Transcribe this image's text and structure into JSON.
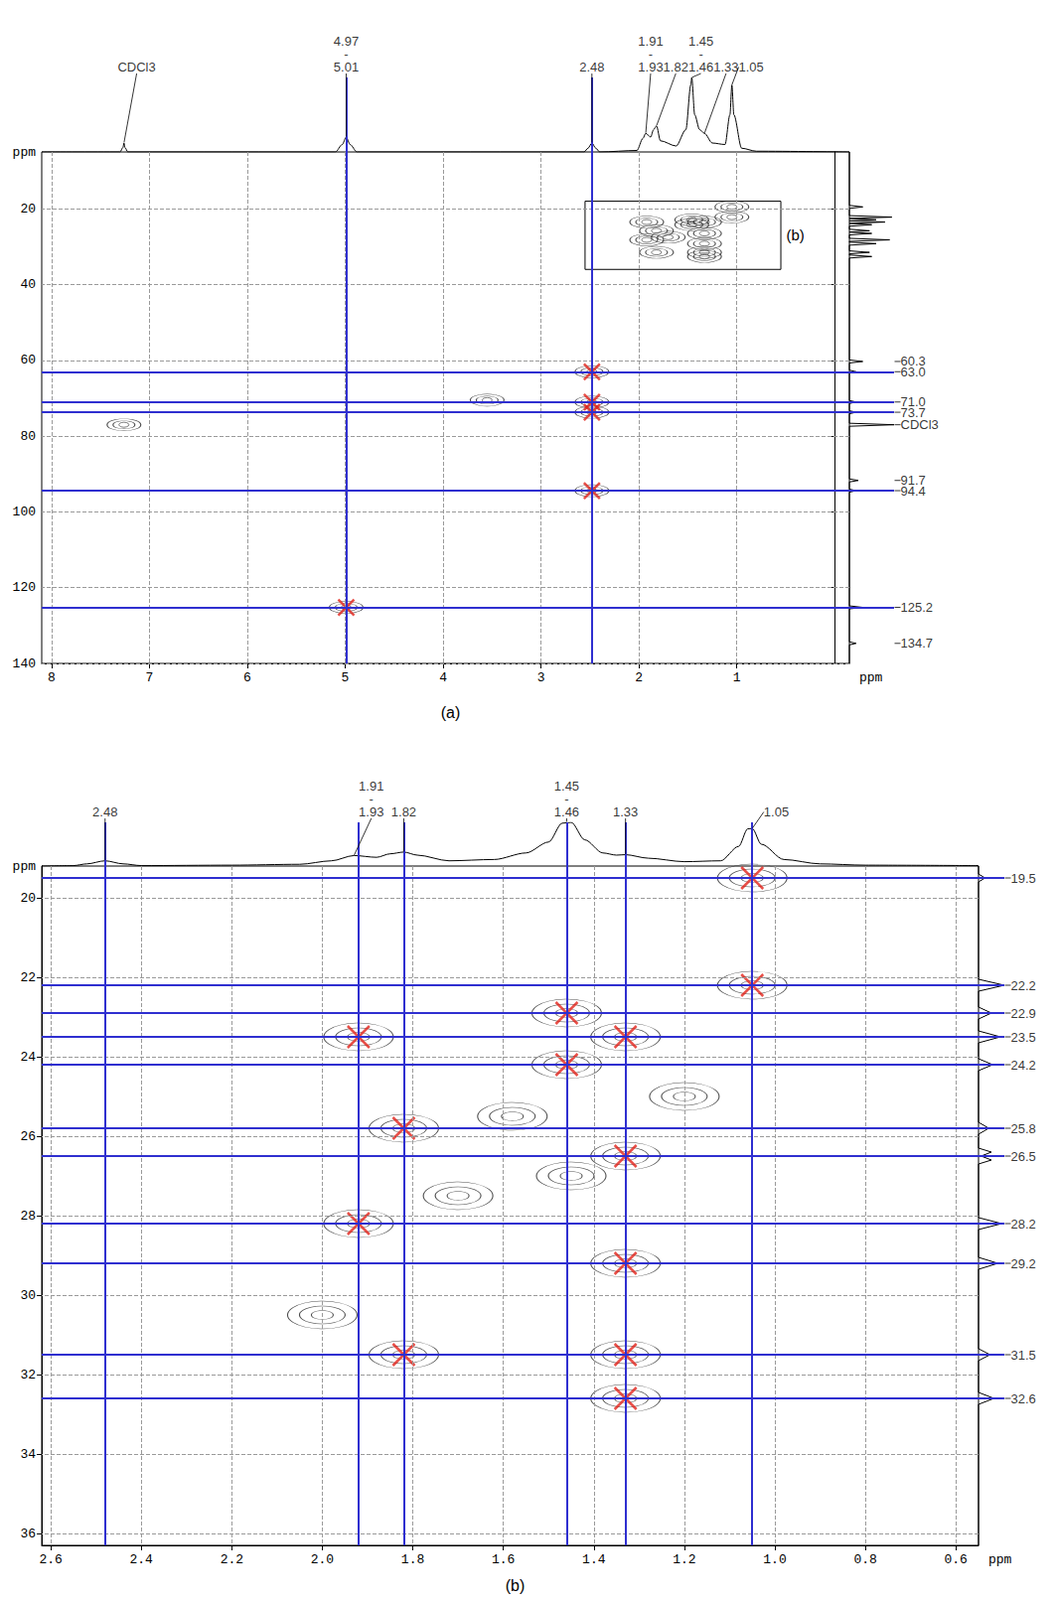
{
  "chart_data": [
    {
      "type": "scatter",
      "panel_label": "(a)",
      "x_label": "ppm",
      "y_label": "ppm",
      "xlim": [
        8.1,
        -0.15
      ],
      "xticks": [
        8,
        7,
        6,
        5,
        4,
        3,
        2,
        1
      ],
      "ylim": [
        140,
        5
      ],
      "yticks": [
        20,
        40,
        60,
        80,
        100,
        120,
        140
      ],
      "grid": true,
      "marker": "x",
      "proton_spectrum": {
        "ppm": [
          8.1,
          7.3,
          7.27,
          7.26,
          7.25,
          7.22,
          5.1,
          5.03,
          4.99,
          4.95,
          4.88,
          2.56,
          2.52,
          2.48,
          2.44,
          2.4,
          2.02,
          1.96,
          1.93,
          1.88,
          1.85,
          1.82,
          1.78,
          1.62,
          1.52,
          1.47,
          1.46,
          1.43,
          1.38,
          1.33,
          1.25,
          1.12,
          1.07,
          1.05,
          1.03,
          0.95,
          0.8,
          -0.15
        ],
        "intensity": [
          0,
          0,
          0.06,
          0.12,
          0.06,
          0,
          0,
          0.1,
          0.2,
          0.1,
          0,
          0,
          0.05,
          0.12,
          0.05,
          0,
          0.02,
          0.18,
          0.25,
          0.2,
          0.3,
          0.35,
          0.15,
          0.08,
          0.3,
          0.9,
          1.0,
          0.5,
          0.3,
          0.25,
          0.12,
          0.1,
          0.5,
          0.9,
          0.5,
          0.05,
          0.01,
          0
        ],
        "intensity_lim": [
          0,
          1
        ]
      },
      "proton_labels": [
        {
          "ppm": 7.26,
          "lines": [
            "CDCl3"
          ]
        },
        {
          "ppm": 4.99,
          "lines": [
            "4.97",
            "-",
            "5.01"
          ]
        },
        {
          "ppm": 2.48,
          "lines": [
            "2.48"
          ]
        },
        {
          "ppm": 1.93,
          "lines": [
            "1.91",
            "-",
            "1.93"
          ]
        },
        {
          "ppm": 1.82,
          "lines": [
            "1.82"
          ]
        },
        {
          "ppm": 1.46,
          "lines": [
            "1.45",
            "-",
            "1.46"
          ]
        },
        {
          "ppm": 1.33,
          "lines": [
            "1.33"
          ]
        },
        {
          "ppm": 1.05,
          "lines": [
            "1.05"
          ]
        }
      ],
      "carbon_spectrum": {
        "ppm": [
          5,
          19.1,
          19.5,
          19.9,
          21.8,
          22.2,
          22.55,
          22.9,
          23.2,
          23.5,
          23.85,
          24.2,
          24.6,
          25.4,
          25.8,
          26.15,
          26.5,
          26.9,
          27.8,
          28.2,
          28.6,
          28.8,
          29.2,
          29.6,
          31.1,
          31.5,
          31.9,
          32.2,
          32.6,
          33.0,
          59.9,
          60.3,
          60.7,
          62.6,
          63.0,
          63.4,
          70.6,
          71.0,
          71.4,
          73.3,
          73.7,
          74.1,
          76.6,
          77.0,
          77.4,
          91.3,
          91.7,
          92.1,
          94.0,
          94.4,
          94.8,
          124.8,
          125.2,
          125.6,
          134.3,
          134.7,
          135.1,
          140
        ],
        "intensity": [
          0,
          0,
          0.3,
          0,
          0,
          0.95,
          0,
          0.6,
          0,
          0.8,
          0,
          0.5,
          0,
          0,
          0.45,
          0,
          0.5,
          0,
          0,
          0.9,
          0,
          0,
          0.6,
          0,
          0,
          0.45,
          0,
          0,
          0.5,
          0,
          0,
          0.3,
          0,
          0,
          0.15,
          0,
          0,
          0.15,
          0,
          0,
          0.15,
          0,
          0,
          1.0,
          0,
          0,
          0.2,
          0,
          0,
          0.15,
          0,
          0,
          0.3,
          0,
          0,
          0.15,
          0,
          0
        ],
        "intensity_lim": [
          0,
          1
        ]
      },
      "carbon_labels": [
        {
          "ppm": 60.3,
          "label": "60.3"
        },
        {
          "ppm": 63.0,
          "label": "63.0"
        },
        {
          "ppm": 71.0,
          "label": "71.0"
        },
        {
          "ppm": 73.7,
          "label": "73.7"
        },
        {
          "ppm": 77.0,
          "label": "CDCl3"
        },
        {
          "ppm": 91.7,
          "label": "91.7"
        },
        {
          "ppm": 94.4,
          "label": "94.4"
        },
        {
          "ppm": 125.2,
          "label": "125.2"
        },
        {
          "ppm": 134.7,
          "label": "134.7"
        }
      ],
      "proton_lines": [
        4.99,
        2.48
      ],
      "carbon_lines": [
        63.0,
        71.0,
        73.7,
        94.4,
        125.2
      ],
      "cross_peaks": {
        "x": [
          4.99,
          2.48,
          2.48,
          2.48,
          2.48
        ],
        "y": [
          125.2,
          63.0,
          71.0,
          73.7,
          94.4
        ]
      },
      "contours": {
        "x": [
          7.26,
          3.55,
          4.99,
          2.48,
          2.48,
          2.48,
          2.48,
          1.05,
          1.05,
          1.46,
          1.92,
          1.33,
          1.46,
          1.82,
          1.33,
          1.92,
          1.33,
          1.82,
          1.33,
          1.33,
          1.7
        ],
        "y": [
          77.0,
          70.5,
          125.2,
          63.0,
          71.0,
          73.7,
          94.4,
          19.5,
          22.2,
          22.9,
          23.5,
          23.5,
          24.2,
          25.8,
          26.5,
          28.2,
          29.2,
          31.5,
          31.5,
          32.6,
          27.5
        ]
      },
      "inset": {
        "label": "(b)",
        "x": [
          2.55,
          0.55
        ],
        "y": [
          18,
          36
        ]
      }
    },
    {
      "type": "scatter",
      "panel_label": "(b)",
      "x_label": "ppm",
      "y_label": "ppm",
      "xlim": [
        2.62,
        0.55
      ],
      "xticks": [
        2.6,
        2.4,
        2.2,
        {
          "value": 2,
          "label": "2.0"
        },
        1.8,
        1.6,
        1.4,
        1.2,
        {
          "value": 1,
          "label": "1.0"
        },
        0.8,
        0.6
      ],
      "ylim": [
        36.3,
        19.2
      ],
      "yticks": [
        20,
        22,
        24,
        26,
        28,
        30,
        32,
        34,
        36
      ],
      "grid": true,
      "marker": "x",
      "proton_spectrum": {
        "ppm": [
          2.62,
          2.55,
          2.52,
          2.48,
          2.44,
          2.4,
          2.2,
          2.05,
          1.98,
          1.93,
          1.88,
          1.85,
          1.82,
          1.79,
          1.72,
          1.62,
          1.55,
          1.5,
          1.47,
          1.45,
          1.42,
          1.38,
          1.35,
          1.33,
          1.28,
          1.2,
          1.12,
          1.08,
          1.06,
          1.05,
          1.03,
          0.98,
          0.9,
          0.8,
          0.55
        ],
        "intensity": [
          0,
          0.01,
          0.05,
          0.12,
          0.05,
          0.01,
          0.02,
          0.04,
          0.12,
          0.24,
          0.2,
          0.28,
          0.32,
          0.25,
          0.12,
          0.15,
          0.3,
          0.55,
          0.98,
          1.0,
          0.6,
          0.3,
          0.25,
          0.26,
          0.18,
          0.1,
          0.12,
          0.45,
          0.85,
          0.86,
          0.5,
          0.15,
          0.05,
          0.02,
          0.01
        ],
        "intensity_lim": [
          0,
          1
        ]
      },
      "proton_labels": [
        {
          "ppm": 2.48,
          "lines": [
            "2.48"
          ]
        },
        {
          "ppm": 1.93,
          "lines": [
            "1.91",
            "-",
            "1.93"
          ]
        },
        {
          "ppm": 1.82,
          "lines": [
            "1.82"
          ]
        },
        {
          "ppm": 1.46,
          "lines": [
            "1.45",
            "-",
            "1.46"
          ]
        },
        {
          "ppm": 1.33,
          "lines": [
            "1.33"
          ]
        },
        {
          "ppm": 1.05,
          "lines": [
            "1.05"
          ]
        }
      ],
      "carbon_spectrum": {
        "ppm": [
          19.2,
          19.4,
          19.5,
          19.6,
          22.05,
          22.2,
          22.35,
          22.75,
          22.9,
          23.05,
          23.35,
          23.5,
          23.65,
          24.05,
          24.2,
          24.35,
          25.65,
          25.8,
          25.95,
          26.3,
          26.4,
          26.5,
          26.6,
          26.7,
          28.05,
          28.2,
          28.35,
          29.05,
          29.2,
          29.35,
          31.35,
          31.5,
          31.65,
          32.45,
          32.6,
          32.75,
          36.3
        ],
        "intensity": [
          0,
          0,
          0.25,
          0,
          0,
          1.0,
          0,
          0,
          0.5,
          0,
          0,
          0.85,
          0,
          0,
          0.55,
          0,
          0,
          0.4,
          0,
          0,
          0.5,
          0.1,
          0.5,
          0,
          0,
          0.9,
          0,
          0,
          0.75,
          0,
          0,
          0.45,
          0,
          0,
          0.6,
          0,
          0
        ],
        "intensity_lim": [
          0,
          1
        ]
      },
      "carbon_labels": [
        {
          "ppm": 19.5,
          "label": "19.5"
        },
        {
          "ppm": 22.2,
          "label": "22.2"
        },
        {
          "ppm": 22.9,
          "label": "22.9"
        },
        {
          "ppm": 23.5,
          "label": "23.5"
        },
        {
          "ppm": 24.2,
          "label": "24.2"
        },
        {
          "ppm": 25.8,
          "label": "25.8"
        },
        {
          "ppm": 26.5,
          "label": "26.5"
        },
        {
          "ppm": 28.2,
          "label": "28.2"
        },
        {
          "ppm": 29.2,
          "label": "29.2"
        },
        {
          "ppm": 31.5,
          "label": "31.5"
        },
        {
          "ppm": 32.6,
          "label": "32.6"
        }
      ],
      "proton_lines": [
        2.48,
        1.92,
        1.82,
        1.46,
        1.33,
        1.05
      ],
      "carbon_lines": [
        19.5,
        22.2,
        22.9,
        23.5,
        24.2,
        25.8,
        26.5,
        28.2,
        29.2,
        31.5,
        32.6
      ],
      "cross_peaks": {
        "x": [
          1.05,
          1.05,
          1.46,
          1.92,
          1.33,
          1.46,
          1.82,
          1.33,
          1.92,
          1.33,
          1.82,
          1.33,
          1.33
        ],
        "y": [
          19.5,
          22.2,
          22.9,
          23.5,
          23.5,
          24.2,
          25.8,
          26.5,
          28.2,
          29.2,
          31.5,
          31.5,
          32.6
        ]
      },
      "contours": {
        "x": [
          1.05,
          1.05,
          1.46,
          1.92,
          1.33,
          1.46,
          1.82,
          1.33,
          1.92,
          1.33,
          1.82,
          1.33,
          1.33,
          1.7,
          1.45,
          1.2,
          1.58,
          2.0
        ],
        "y": [
          19.5,
          22.2,
          22.9,
          23.5,
          23.5,
          24.2,
          25.8,
          26.5,
          28.2,
          29.2,
          31.5,
          31.5,
          32.6,
          27.5,
          27.0,
          25.0,
          25.5,
          30.5
        ]
      }
    }
  ]
}
